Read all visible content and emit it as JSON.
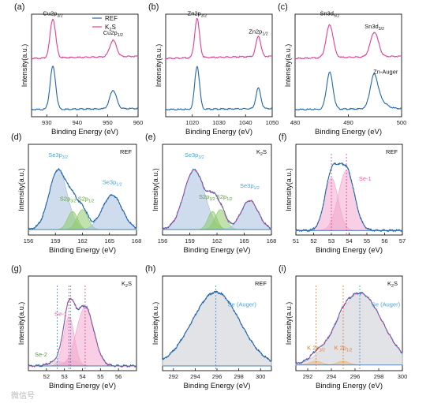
{
  "figure": {
    "watermark": "微信号"
  },
  "colors": {
    "ref": "#2166ac",
    "k2s": "#e33d95",
    "fill_pink": "#f2a8cd",
    "fill_green": "#8ecb6a",
    "fill_blue": "#a7bfe0",
    "fill_grey": "#c9ccd2",
    "fill_orange": "#f3b776",
    "label_blue": "#4ba3d8",
    "label_green": "#58a035",
    "label_pink": "#e466a8",
    "label_orange": "#e8782a",
    "dash_pink": "#e33d95",
    "dash_blue": "#3b8fd6",
    "dash_orange": "#e8782a",
    "axis": "#111111"
  },
  "chart_data": [
    {
      "id": "a",
      "type": "line",
      "panel_label": "(a)",
      "xlabel": "Binding Energy (eV)",
      "ylabel": "Intensity(a.u.)",
      "xlim": [
        925,
        960
      ],
      "xticks": [
        930,
        940,
        950,
        960
      ],
      "reversed": false,
      "legend": {
        "position": "top-right",
        "entries": [
          "REF",
          "K2S"
        ]
      },
      "series": [
        {
          "name": "REF",
          "color": "ref",
          "offset": 0.05,
          "peaks": [
            [
              932.0,
              0.42,
              0.9
            ],
            [
              951.8,
              0.18,
              1.1
            ]
          ],
          "baseline": [
            0.02,
            0.03
          ]
        },
        {
          "name": "K2S",
          "color": "k2s",
          "offset": 0.55,
          "peaks": [
            [
              932.0,
              0.38,
              0.9
            ],
            [
              951.8,
              0.16,
              1.1
            ]
          ],
          "baseline": [
            0.02,
            0.04
          ]
        }
      ],
      "annotations": [
        {
          "text": "Cu2p",
          "sub": "3/2",
          "x": 932.0,
          "y": 0.99
        },
        {
          "text": "Cu2p",
          "sub": "1/2",
          "x": 951.8,
          "y": 0.8
        }
      ]
    },
    {
      "id": "b",
      "type": "line",
      "panel_label": "(b)",
      "xlabel": "Binding Energy (eV)",
      "ylabel": "Intensity(a.u.)",
      "xlim": [
        1010,
        1050
      ],
      "xticks": [
        1020,
        1030,
        1040,
        1050
      ],
      "reversed": false,
      "series": [
        {
          "name": "REF",
          "color": "ref",
          "offset": 0.05,
          "peaks": [
            [
              1021.8,
              0.42,
              0.9
            ],
            [
              1044.8,
              0.2,
              0.9
            ]
          ],
          "baseline": [
            0.02,
            0.03
          ]
        },
        {
          "name": "K2S",
          "color": "k2s",
          "offset": 0.55,
          "peaks": [
            [
              1021.8,
              0.38,
              0.9
            ],
            [
              1044.8,
              0.2,
              0.9
            ]
          ],
          "baseline": [
            0.02,
            0.04
          ]
        }
      ],
      "annotations": [
        {
          "text": "Zn2p",
          "sub": "3/2",
          "x": 1021.8,
          "y": 0.99
        },
        {
          "text": "Zn2p",
          "sub": "1/2",
          "x": 1044.8,
          "y": 0.81
        }
      ]
    },
    {
      "id": "c",
      "type": "line",
      "panel_label": "(c)",
      "xlabel": "Binding Energy (eV)",
      "ylabel": "Intensity(a.u.)",
      "xlim": [
        480,
        500
      ],
      "xticks": [
        480,
        490,
        500
      ],
      "reversed": false,
      "series": [
        {
          "name": "REF",
          "color": "ref",
          "offset": 0.05,
          "peaks": [
            [
              486.5,
              0.36,
              0.6
            ],
            [
              494.8,
              0.28,
              0.7
            ],
            [
              495.8,
              0.08,
              1.2
            ]
          ],
          "baseline": [
            0.02,
            0.03
          ]
        },
        {
          "name": "K2S",
          "color": "k2s",
          "offset": 0.55,
          "peaks": [
            [
              486.5,
              0.32,
              0.65
            ],
            [
              494.9,
              0.24,
              0.75
            ]
          ],
          "baseline": [
            0.02,
            0.04
          ]
        }
      ],
      "annotations": [
        {
          "text": "Sn3d",
          "sub": "5/2",
          "x": 486.5,
          "y": 0.99
        },
        {
          "text": "Sn3d",
          "sub": "3/2",
          "x": 494.9,
          "y": 0.86
        },
        {
          "text": "Zn-Auger",
          "sub": "",
          "x": 497.0,
          "y": 0.42
        }
      ]
    },
    {
      "id": "d",
      "type": "area",
      "panel_label": "(d)",
      "tag": "REF",
      "xlabel": "Binding Energy (eV)",
      "ylabel": "Intensity(a.u.)",
      "xlim": [
        156,
        168
      ],
      "xticks": [
        156,
        159,
        162,
        165,
        168
      ],
      "reversed": false,
      "data_color": "ref",
      "fit_color": "ref",
      "baseline": 0.06,
      "components": [
        {
          "name": "Se3p3/2",
          "center": 159.3,
          "height": 0.66,
          "width": 1.0,
          "fill": "fill_blue"
        },
        {
          "name": "S2p3/2",
          "center": 160.9,
          "height": 0.2,
          "width": 0.55,
          "fill": "fill_green"
        },
        {
          "name": "S2p1/2",
          "center": 162.0,
          "height": 0.22,
          "width": 0.6,
          "fill": "fill_green"
        },
        {
          "name": "Se3p1/2",
          "center": 165.3,
          "height": 0.38,
          "width": 1.1,
          "fill": "fill_blue"
        }
      ],
      "annotations": [
        {
          "text": "Se3p",
          "sub": "3/2",
          "x": 159.3,
          "y": 0.86,
          "color": "label_blue"
        },
        {
          "text": "S2p",
          "sub": "3/2",
          "x": 160.4,
          "y": 0.38,
          "color": "label_green"
        },
        {
          "text": "S2p",
          "sub": "1/2",
          "x": 162.4,
          "y": 0.38,
          "color": "label_green"
        },
        {
          "text": "Se3p",
          "sub": "1/2",
          "x": 165.3,
          "y": 0.56,
          "color": "label_blue"
        }
      ]
    },
    {
      "id": "e",
      "type": "area",
      "panel_label": "(e)",
      "tag": "K2S",
      "xlabel": "Binding Energy (eV)",
      "ylabel": "Intensity(a.u.)",
      "xlim": [
        156,
        168
      ],
      "xticks": [
        156,
        159,
        162,
        165,
        168
      ],
      "reversed": false,
      "data_color": "ref",
      "fit_color": "k2s",
      "baseline": 0.06,
      "components": [
        {
          "name": "Se3p3/2",
          "center": 159.5,
          "height": 0.66,
          "width": 1.15,
          "fill": "fill_blue"
        },
        {
          "name": "S2p3/2",
          "center": 161.5,
          "height": 0.2,
          "width": 0.5,
          "fill": "fill_green"
        },
        {
          "name": "S2p1/2",
          "center": 162.4,
          "height": 0.22,
          "width": 0.6,
          "fill": "fill_green"
        },
        {
          "name": "Se3p1/2",
          "center": 165.6,
          "height": 0.32,
          "width": 0.95,
          "fill": "fill_blue"
        }
      ],
      "annotations": [
        {
          "text": "Se3p",
          "sub": "3/2",
          "x": 159.5,
          "y": 0.86,
          "color": "label_blue"
        },
        {
          "text": "S2p",
          "sub": "3/2",
          "x": 160.9,
          "y": 0.4,
          "color": "label_green"
        },
        {
          "text": "S2p",
          "sub": "1/2",
          "x": 162.8,
          "y": 0.4,
          "color": "label_green"
        },
        {
          "text": "Se3p",
          "sub": "1/2",
          "x": 165.6,
          "y": 0.52,
          "color": "label_blue"
        }
      ]
    },
    {
      "id": "f",
      "type": "area",
      "panel_label": "(f)",
      "tag": "REF",
      "xlabel": "Binding Energy (eV)",
      "ylabel": "Intensity(a.u.)",
      "xlim": [
        51,
        57
      ],
      "xticks": [
        51,
        52,
        53,
        54,
        55,
        56,
        57
      ],
      "reversed": false,
      "data_color": "ref",
      "fit_color": "ref",
      "baseline": 0.05,
      "components": [
        {
          "name": "Se-1 a",
          "center": 53.0,
          "height": 0.58,
          "width": 0.38,
          "fill": "fill_pink"
        },
        {
          "name": "Se-1 b",
          "center": 53.85,
          "height": 0.66,
          "width": 0.45,
          "fill": "fill_pink"
        }
      ],
      "dashed_lines": [
        {
          "x": 53.0,
          "color": "dash_pink"
        },
        {
          "x": 53.85,
          "color": "dash_pink"
        }
      ],
      "annotations": [
        {
          "text": "Se-1",
          "sub": "",
          "x": 54.9,
          "y": 0.6,
          "color": "label_pink"
        }
      ]
    },
    {
      "id": "g",
      "type": "area",
      "panel_label": "(g)",
      "tag": "K2S",
      "xlabel": "Binding Energy (eV)",
      "ylabel": "Intensity(a.u.)",
      "xlim": [
        51,
        57
      ],
      "xticks": [
        52,
        53,
        54,
        55,
        56
      ],
      "reversed": false,
      "data_color": "ref",
      "fit_color": "k2s",
      "baseline": 0.05,
      "components": [
        {
          "name": "Se-2",
          "center": 52.6,
          "height": 0.05,
          "width": 0.4,
          "fill": "fill_grey"
        },
        {
          "name": "Se-2 b",
          "center": 53.35,
          "height": 0.06,
          "width": 0.4,
          "fill": "fill_grey"
        },
        {
          "name": "Se-1 a",
          "center": 53.25,
          "height": 0.52,
          "width": 0.3,
          "fill": "fill_pink"
        },
        {
          "name": "Se-1 b",
          "center": 54.15,
          "height": 0.62,
          "width": 0.48,
          "fill": "fill_pink"
        }
      ],
      "dashed_lines": [
        {
          "x": 53.25,
          "color": "dash_pink"
        },
        {
          "x": 54.15,
          "color": "dash_pink"
        },
        {
          "x": 52.6,
          "color": "dash_blue"
        },
        {
          "x": 53.35,
          "color": "dash_blue"
        }
      ],
      "annotations": [
        {
          "text": "Se-1",
          "sub": "",
          "x": 52.8,
          "y": 0.58,
          "color": "label_pink"
        },
        {
          "text": "Se-2",
          "sub": "",
          "x": 51.7,
          "y": 0.15,
          "color": "label_green"
        }
      ]
    },
    {
      "id": "h",
      "type": "area",
      "panel_label": "(h)",
      "tag": "REF",
      "xlabel": "Binding Energy (eV)",
      "ylabel": "Intensity(a.u.)",
      "xlim": [
        291,
        301
      ],
      "xticks": [
        292,
        294,
        296,
        298,
        300
      ],
      "reversed": false,
      "data_color": "ref",
      "fit_color": "ref",
      "baseline": 0.05,
      "components": [
        {
          "name": "Se (Auger)",
          "center": 295.9,
          "height": 0.78,
          "width": 2.2,
          "fill": "fill_grey"
        }
      ],
      "dashed_lines": [
        {
          "x": 295.9,
          "color": "dash_blue"
        }
      ],
      "annotations": [
        {
          "text": "Se (Auger)",
          "sub": "",
          "x": 298.3,
          "y": 0.68,
          "color": "label_blue"
        }
      ]
    },
    {
      "id": "i",
      "type": "area",
      "panel_label": "(i)",
      "tag": "K2S",
      "xlabel": "Binding Energy (eV)",
      "ylabel": "Intensity(a.u.)",
      "xlim": [
        291,
        300
      ],
      "xticks": [
        292,
        294,
        296,
        298,
        300
      ],
      "reversed": false,
      "data_color": "ref",
      "fit_color": "k2s",
      "baseline": 0.06,
      "components": [
        {
          "name": "Se (Auger)",
          "center": 296.4,
          "height": 0.76,
          "width": 1.9,
          "fill": "fill_grey"
        },
        {
          "name": "K 2p3/2",
          "center": 292.7,
          "height": 0.04,
          "width": 0.5,
          "fill": "fill_orange"
        },
        {
          "name": "K 2p1/2",
          "center": 295.0,
          "height": 0.04,
          "width": 0.5,
          "fill": "fill_orange"
        }
      ],
      "dashed_lines": [
        {
          "x": 296.4,
          "color": "dash_blue"
        },
        {
          "x": 292.7,
          "color": "dash_orange"
        },
        {
          "x": 295.0,
          "color": "dash_orange"
        }
      ],
      "annotations": [
        {
          "text": "Se (Auger)",
          "sub": "",
          "x": 298.6,
          "y": 0.68,
          "color": "label_blue"
        },
        {
          "text": "K 2p",
          "sub": "3/2",
          "x": 292.7,
          "y": 0.22,
          "color": "label_orange"
        },
        {
          "text": "K 2p",
          "sub": "1/2",
          "x": 295.0,
          "y": 0.22,
          "color": "label_orange"
        }
      ]
    }
  ]
}
